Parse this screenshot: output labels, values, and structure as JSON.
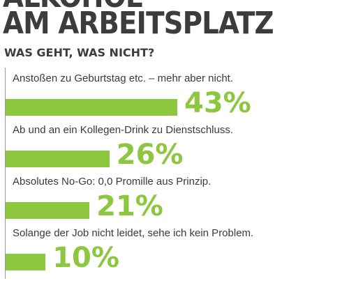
{
  "header": {
    "title_cut": "ALKOHOL",
    "title": "AM ARBEITSPLATZ",
    "subtitle": "WAS GEHT, WAS NICHT?"
  },
  "colors": {
    "bar": "#8dc63f",
    "text": "#3c3c3c"
  },
  "chart_data": {
    "type": "bar",
    "orientation": "horizontal",
    "title": "AM ARBEITSPLATZ",
    "subtitle": "WAS GEHT, WAS NICHT?",
    "categories": [
      "Anstoßen zu Geburtstag etc. – mehr aber nicht.",
      "Ab und an ein Kollegen-Drink zu Dienstschluss.",
      "Absolutes No-Go: 0,0 Promille aus Prinzip.",
      "Solange der Job nicht leidet, sehe ich kein Problem."
    ],
    "values": [
      43,
      26,
      21,
      10
    ],
    "value_labels": [
      "43%",
      "26%",
      "21%",
      "10%"
    ],
    "unit": "%",
    "grid": false,
    "legend": "none"
  }
}
